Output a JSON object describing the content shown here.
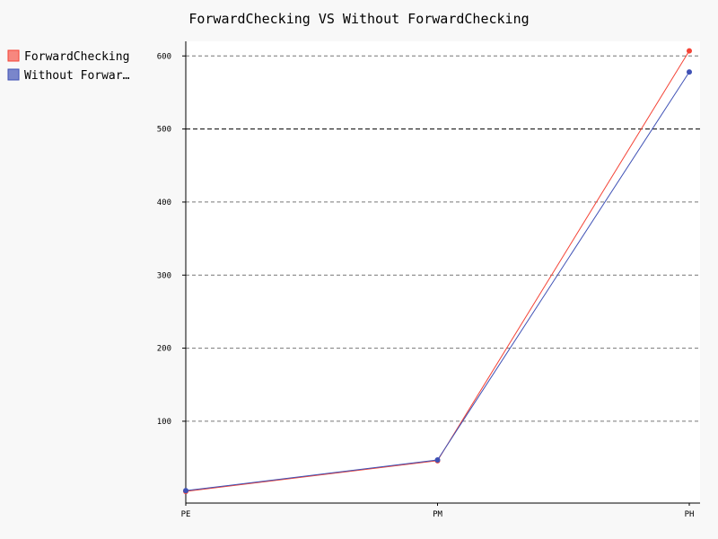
{
  "chart_data": {
    "type": "line",
    "title": "ForwardChecking VS Without ForwardChecking",
    "categories": [
      "PE",
      "PM",
      "PH"
    ],
    "series": [
      {
        "name": "ForwardChecking",
        "legend_label": "ForwardChecking",
        "color": "#f44336",
        "fill": "#f7877f",
        "values": [
          4,
          46,
          607
        ]
      },
      {
        "name": "Without ForwardChecking",
        "legend_label": "Without Forwar…",
        "color": "#3f51b5",
        "fill": "#7a86cb",
        "values": [
          5,
          47,
          578
        ]
      }
    ],
    "y_ticks": [
      100,
      200,
      300,
      400,
      500,
      600
    ],
    "ylim": [
      -12,
      620
    ],
    "grid": true,
    "legend_position": "top-left"
  }
}
